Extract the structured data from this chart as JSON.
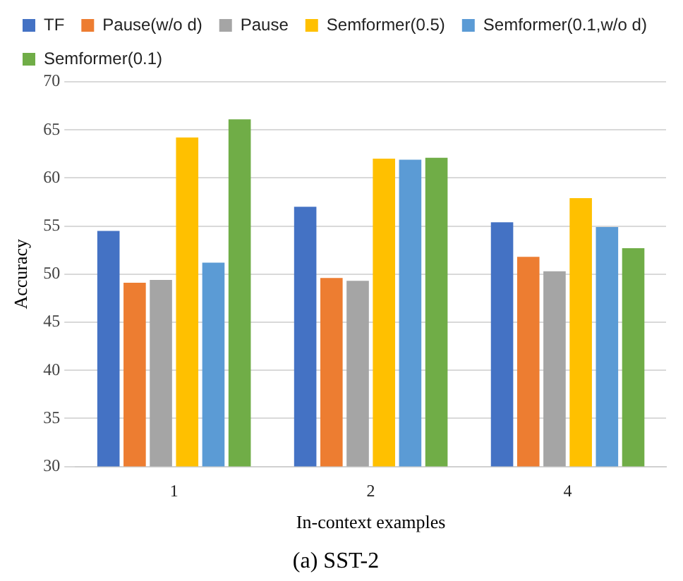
{
  "chart_data": {
    "type": "bar",
    "title": "(a) SST-2",
    "xlabel": "In-context examples",
    "ylabel": "Accuracy",
    "categories": [
      "1",
      "2",
      "4"
    ],
    "series": [
      {
        "name": "TF",
        "color": "#4472c4",
        "values": [
          54.5,
          57.0,
          55.4
        ]
      },
      {
        "name": "Pause(w/o d)",
        "color": "#ed7d31",
        "values": [
          49.1,
          49.6,
          51.8
        ]
      },
      {
        "name": "Pause",
        "color": "#a5a5a5",
        "values": [
          49.4,
          49.3,
          50.3
        ]
      },
      {
        "name": "Semformer(0.5)",
        "color": "#ffc000",
        "values": [
          64.2,
          62.0,
          57.9
        ]
      },
      {
        "name": "Semformer(0.1,w/o d)",
        "color": "#5b9bd5",
        "values": [
          51.2,
          61.9,
          54.9
        ]
      },
      {
        "name": "Semformer(0.1)",
        "color": "#70ad47",
        "values": [
          66.1,
          62.1,
          52.7
        ]
      }
    ],
    "ylim": [
      30,
      70
    ],
    "yticks": [
      30,
      35,
      40,
      45,
      50,
      55,
      60,
      65,
      70
    ],
    "grid": "y",
    "legend": "top"
  }
}
